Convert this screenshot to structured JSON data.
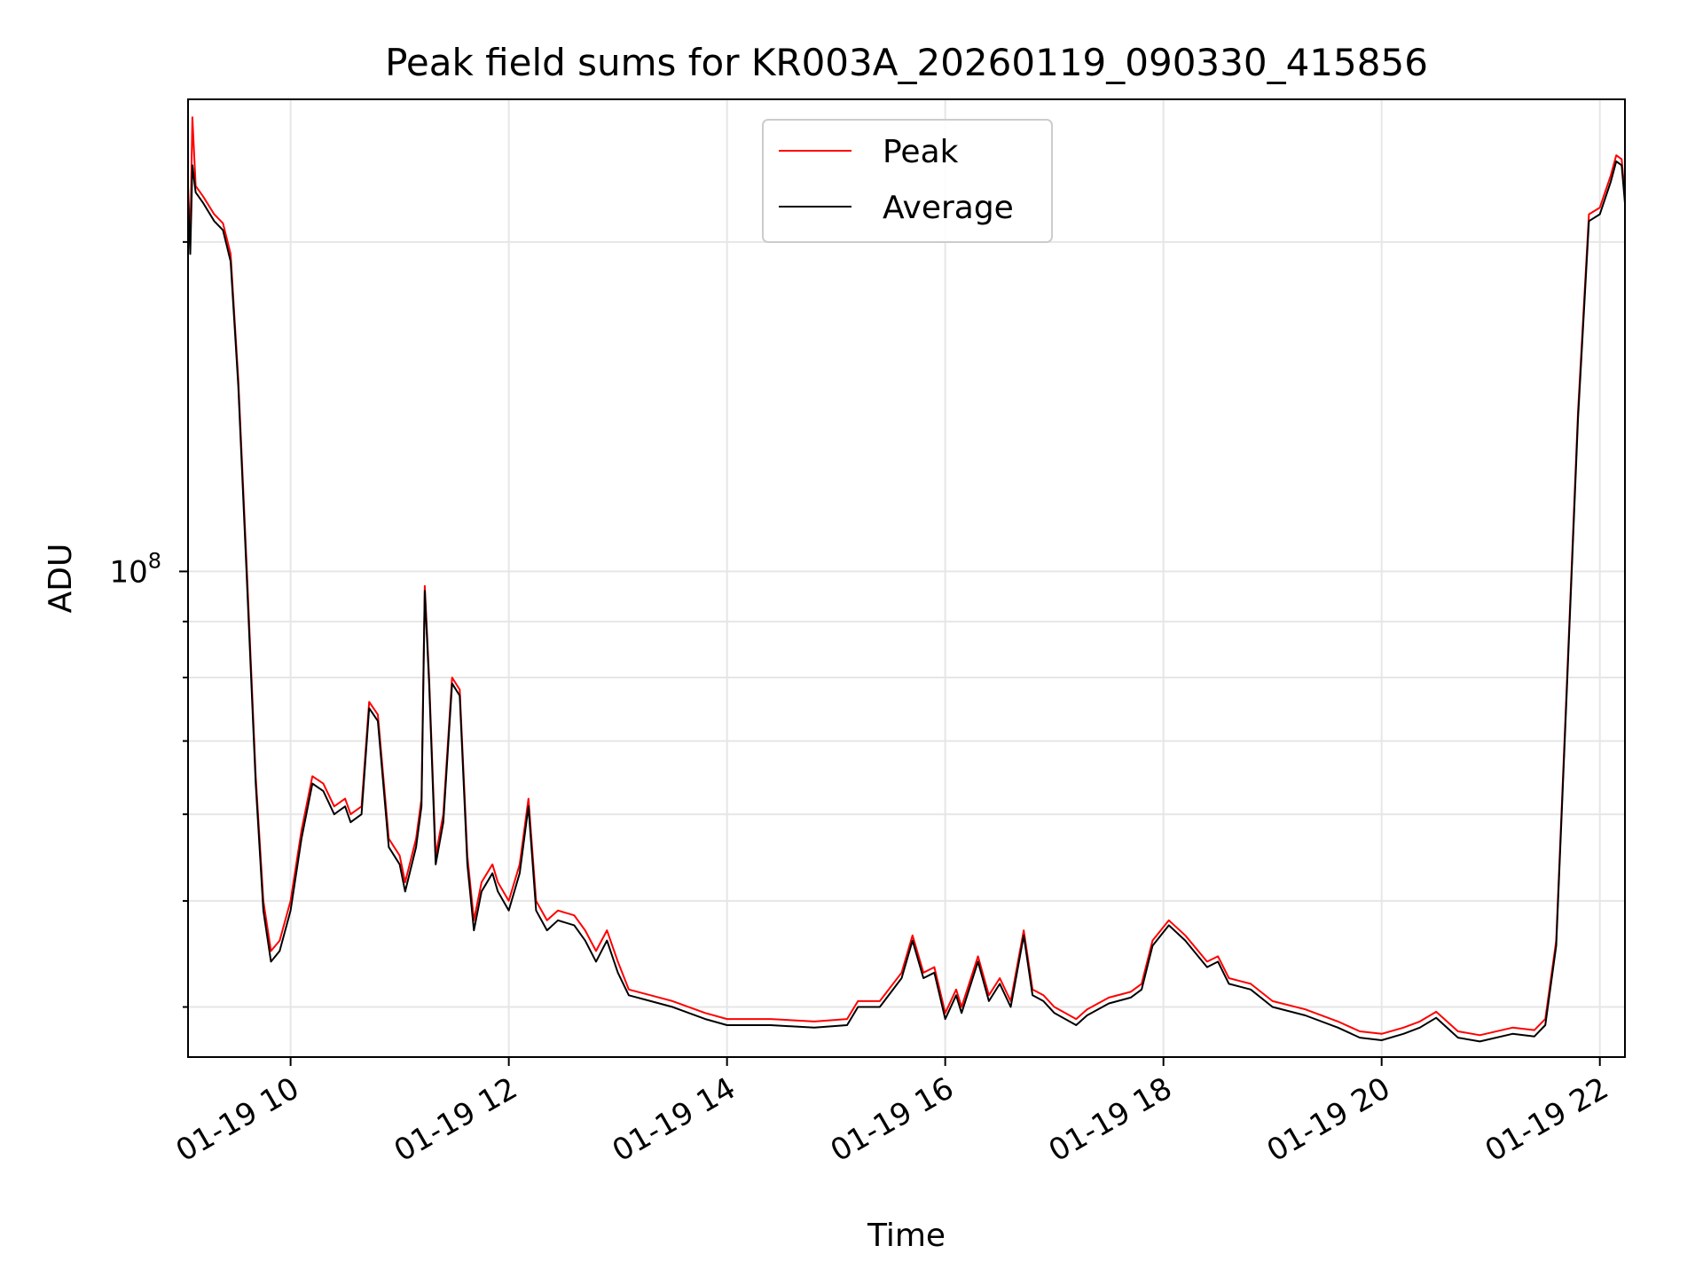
{
  "chart_data": {
    "type": "line",
    "title": "Peak field sums for KR003A_20260119_090330_415856",
    "xlabel": "Time",
    "ylabel": "ADU",
    "yscale": "log",
    "grid": true,
    "legend_position": "top-center",
    "x_ticks": [
      {
        "label": "01-19 10",
        "hour": 10
      },
      {
        "label": "01-19 12",
        "hour": 12
      },
      {
        "label": "01-19 14",
        "hour": 14
      },
      {
        "label": "01-19 16",
        "hour": 16
      },
      {
        "label": "01-19 18",
        "hour": 18
      },
      {
        "label": "01-19 20",
        "hour": 20
      },
      {
        "label": "01-19 22",
        "hour": 22
      }
    ],
    "y_major_tick": {
      "base": "10",
      "exponent": "8",
      "value": 100000000
    },
    "y_minor_ticks": [
      40000000,
      50000000,
      60000000,
      70000000,
      80000000,
      90000000,
      200000000
    ],
    "xlim_hours": [
      9.06,
      22.23
    ],
    "ylim": [
      36000000,
      270000000
    ],
    "series": [
      {
        "name": "Peak",
        "color": "#ff0000",
        "points": [
          [
            9.06,
            225000000
          ],
          [
            9.08,
            200000000
          ],
          [
            9.1,
            260000000
          ],
          [
            9.13,
            225000000
          ],
          [
            9.2,
            220000000
          ],
          [
            9.3,
            212000000
          ],
          [
            9.38,
            208000000
          ],
          [
            9.45,
            195000000
          ],
          [
            9.52,
            150000000
          ],
          [
            9.6,
            100000000
          ],
          [
            9.68,
            65000000
          ],
          [
            9.75,
            50000000
          ],
          [
            9.82,
            45000000
          ],
          [
            9.9,
            46000000
          ],
          [
            10.0,
            50000000
          ],
          [
            10.1,
            58000000
          ],
          [
            10.2,
            65000000
          ],
          [
            10.3,
            64000000
          ],
          [
            10.4,
            61000000
          ],
          [
            10.5,
            62000000
          ],
          [
            10.55,
            60000000
          ],
          [
            10.65,
            61000000
          ],
          [
            10.72,
            76000000
          ],
          [
            10.8,
            74000000
          ],
          [
            10.9,
            57000000
          ],
          [
            11.0,
            55000000
          ],
          [
            11.05,
            52000000
          ],
          [
            11.15,
            57000000
          ],
          [
            11.2,
            62000000
          ],
          [
            11.23,
            97000000
          ],
          [
            11.27,
            80000000
          ],
          [
            11.33,
            55000000
          ],
          [
            11.4,
            60000000
          ],
          [
            11.48,
            80000000
          ],
          [
            11.55,
            78000000
          ],
          [
            11.62,
            55000000
          ],
          [
            11.68,
            48000000
          ],
          [
            11.75,
            52000000
          ],
          [
            11.85,
            54000000
          ],
          [
            11.9,
            52000000
          ],
          [
            12.0,
            50000000
          ],
          [
            12.1,
            54000000
          ],
          [
            12.18,
            62000000
          ],
          [
            12.25,
            50000000
          ],
          [
            12.35,
            48000000
          ],
          [
            12.45,
            49000000
          ],
          [
            12.6,
            48500000
          ],
          [
            12.7,
            47000000
          ],
          [
            12.8,
            45000000
          ],
          [
            12.9,
            47000000
          ],
          [
            13.0,
            44000000
          ],
          [
            13.1,
            41500000
          ],
          [
            13.3,
            41000000
          ],
          [
            13.5,
            40500000
          ],
          [
            13.8,
            39500000
          ],
          [
            14.0,
            39000000
          ],
          [
            14.4,
            39000000
          ],
          [
            14.8,
            38800000
          ],
          [
            15.1,
            39000000
          ],
          [
            15.2,
            40500000
          ],
          [
            15.4,
            40500000
          ],
          [
            15.6,
            43000000
          ],
          [
            15.7,
            46500000
          ],
          [
            15.8,
            43000000
          ],
          [
            15.9,
            43500000
          ],
          [
            16.0,
            39500000
          ],
          [
            16.1,
            41500000
          ],
          [
            16.15,
            40000000
          ],
          [
            16.3,
            44500000
          ],
          [
            16.4,
            41000000
          ],
          [
            16.5,
            42500000
          ],
          [
            16.6,
            40500000
          ],
          [
            16.72,
            47000000
          ],
          [
            16.8,
            41500000
          ],
          [
            16.9,
            41000000
          ],
          [
            17.0,
            40000000
          ],
          [
            17.2,
            39000000
          ],
          [
            17.3,
            39800000
          ],
          [
            17.5,
            40800000
          ],
          [
            17.7,
            41300000
          ],
          [
            17.8,
            42000000
          ],
          [
            17.9,
            46000000
          ],
          [
            18.05,
            48000000
          ],
          [
            18.2,
            46500000
          ],
          [
            18.4,
            44000000
          ],
          [
            18.5,
            44500000
          ],
          [
            18.6,
            42500000
          ],
          [
            18.8,
            42000000
          ],
          [
            19.0,
            40500000
          ],
          [
            19.3,
            39800000
          ],
          [
            19.6,
            38800000
          ],
          [
            19.8,
            38000000
          ],
          [
            20.0,
            37800000
          ],
          [
            20.2,
            38300000
          ],
          [
            20.35,
            38800000
          ],
          [
            20.5,
            39600000
          ],
          [
            20.7,
            38000000
          ],
          [
            20.9,
            37700000
          ],
          [
            21.2,
            38300000
          ],
          [
            21.4,
            38100000
          ],
          [
            21.5,
            39000000
          ],
          [
            21.6,
            46000000
          ],
          [
            21.7,
            80000000
          ],
          [
            21.8,
            140000000
          ],
          [
            21.9,
            212000000
          ],
          [
            22.0,
            215000000
          ],
          [
            22.1,
            230000000
          ],
          [
            22.15,
            240000000
          ],
          [
            22.2,
            238000000
          ],
          [
            22.23,
            220000000
          ]
        ]
      },
      {
        "name": "Average",
        "color": "#000000",
        "points": [
          [
            9.06,
            220000000
          ],
          [
            9.08,
            195000000
          ],
          [
            9.1,
            235000000
          ],
          [
            9.13,
            222000000
          ],
          [
            9.2,
            217000000
          ],
          [
            9.3,
            209000000
          ],
          [
            9.38,
            205000000
          ],
          [
            9.45,
            192000000
          ],
          [
            9.52,
            148000000
          ],
          [
            9.6,
            98000000
          ],
          [
            9.68,
            64000000
          ],
          [
            9.75,
            49000000
          ],
          [
            9.82,
            44000000
          ],
          [
            9.9,
            45000000
          ],
          [
            10.0,
            49000000
          ],
          [
            10.1,
            57000000
          ],
          [
            10.2,
            64000000
          ],
          [
            10.3,
            63000000
          ],
          [
            10.4,
            60000000
          ],
          [
            10.5,
            61000000
          ],
          [
            10.55,
            59000000
          ],
          [
            10.65,
            60000000
          ],
          [
            10.72,
            75000000
          ],
          [
            10.8,
            73000000
          ],
          [
            10.9,
            56000000
          ],
          [
            11.0,
            54000000
          ],
          [
            11.05,
            51000000
          ],
          [
            11.15,
            56000000
          ],
          [
            11.2,
            61000000
          ],
          [
            11.23,
            96000000
          ],
          [
            11.27,
            79000000
          ],
          [
            11.33,
            54000000
          ],
          [
            11.4,
            59000000
          ],
          [
            11.48,
            79000000
          ],
          [
            11.55,
            77000000
          ],
          [
            11.62,
            54000000
          ],
          [
            11.68,
            47000000
          ],
          [
            11.75,
            51000000
          ],
          [
            11.85,
            53000000
          ],
          [
            11.9,
            51000000
          ],
          [
            12.0,
            49000000
          ],
          [
            12.1,
            53000000
          ],
          [
            12.18,
            61000000
          ],
          [
            12.25,
            49000000
          ],
          [
            12.35,
            47000000
          ],
          [
            12.45,
            48000000
          ],
          [
            12.6,
            47500000
          ],
          [
            12.7,
            46000000
          ],
          [
            12.8,
            44000000
          ],
          [
            12.9,
            46000000
          ],
          [
            13.0,
            43000000
          ],
          [
            13.1,
            41000000
          ],
          [
            13.3,
            40500000
          ],
          [
            13.5,
            40000000
          ],
          [
            13.8,
            39000000
          ],
          [
            14.0,
            38500000
          ],
          [
            14.4,
            38500000
          ],
          [
            14.8,
            38300000
          ],
          [
            15.1,
            38500000
          ],
          [
            15.2,
            40000000
          ],
          [
            15.4,
            40000000
          ],
          [
            15.6,
            42500000
          ],
          [
            15.7,
            46000000
          ],
          [
            15.8,
            42500000
          ],
          [
            15.9,
            43000000
          ],
          [
            16.0,
            39000000
          ],
          [
            16.1,
            41000000
          ],
          [
            16.15,
            39500000
          ],
          [
            16.3,
            44000000
          ],
          [
            16.4,
            40500000
          ],
          [
            16.5,
            42000000
          ],
          [
            16.6,
            40000000
          ],
          [
            16.72,
            46500000
          ],
          [
            16.8,
            41000000
          ],
          [
            16.9,
            40500000
          ],
          [
            17.0,
            39500000
          ],
          [
            17.2,
            38500000
          ],
          [
            17.3,
            39300000
          ],
          [
            17.5,
            40300000
          ],
          [
            17.7,
            40800000
          ],
          [
            17.8,
            41500000
          ],
          [
            17.9,
            45500000
          ],
          [
            18.05,
            47500000
          ],
          [
            18.2,
            46000000
          ],
          [
            18.4,
            43500000
          ],
          [
            18.5,
            44000000
          ],
          [
            18.6,
            42000000
          ],
          [
            18.8,
            41500000
          ],
          [
            19.0,
            40000000
          ],
          [
            19.3,
            39300000
          ],
          [
            19.6,
            38300000
          ],
          [
            19.8,
            37500000
          ],
          [
            20.0,
            37300000
          ],
          [
            20.2,
            37800000
          ],
          [
            20.35,
            38300000
          ],
          [
            20.5,
            39100000
          ],
          [
            20.7,
            37500000
          ],
          [
            20.9,
            37200000
          ],
          [
            21.2,
            37800000
          ],
          [
            21.4,
            37600000
          ],
          [
            21.5,
            38500000
          ],
          [
            21.6,
            45500000
          ],
          [
            21.7,
            79000000
          ],
          [
            21.8,
            138000000
          ],
          [
            21.9,
            209000000
          ],
          [
            22.0,
            212000000
          ],
          [
            22.1,
            227000000
          ],
          [
            22.15,
            237000000
          ],
          [
            22.2,
            235000000
          ],
          [
            22.23,
            217000000
          ]
        ]
      }
    ]
  }
}
